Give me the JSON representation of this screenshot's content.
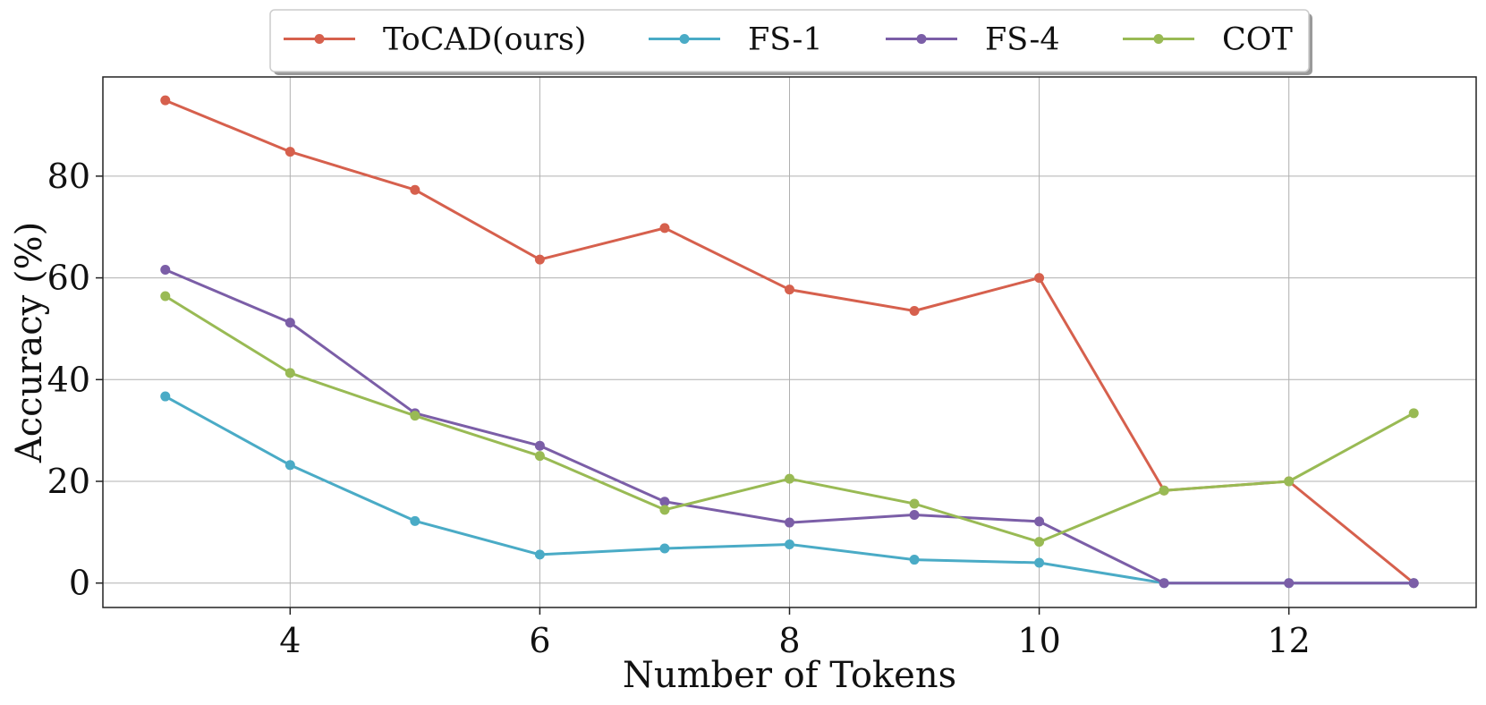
{
  "chart_data": {
    "type": "line",
    "title": "",
    "xlabel": "Number of Tokens",
    "ylabel": "Accuracy (%)",
    "x": [
      3,
      4,
      5,
      6,
      7,
      8,
      9,
      10,
      11,
      12,
      13
    ],
    "xlim": [
      2.5,
      13.5
    ],
    "ylim": [
      -4.8,
      99.5
    ],
    "x_ticks": [
      4,
      6,
      8,
      10,
      12
    ],
    "y_ticks": [
      0,
      20,
      40,
      60,
      80
    ],
    "grid": true,
    "legend_position": "top-center",
    "series": [
      {
        "name": "ToCAD(ours)",
        "color": "#d6604d",
        "values": [
          94.9,
          84.8,
          77.3,
          63.6,
          69.8,
          57.7,
          53.5,
          60.0,
          18.2,
          20.0,
          0.0
        ]
      },
      {
        "name": "FS-1",
        "color": "#4aabc6",
        "values": [
          36.7,
          23.2,
          12.2,
          5.6,
          6.8,
          7.6,
          4.6,
          4.0,
          0.0,
          0.0,
          0.0
        ]
      },
      {
        "name": "FS-4",
        "color": "#7b5ea7",
        "values": [
          61.6,
          51.2,
          33.4,
          27.0,
          16.0,
          11.9,
          13.4,
          12.1,
          0.0,
          0.0,
          0.0
        ]
      },
      {
        "name": "COT",
        "color": "#99ba54",
        "values": [
          56.4,
          41.3,
          32.9,
          25.0,
          14.4,
          20.5,
          15.6,
          8.1,
          18.2,
          20.0,
          33.4
        ]
      }
    ]
  }
}
